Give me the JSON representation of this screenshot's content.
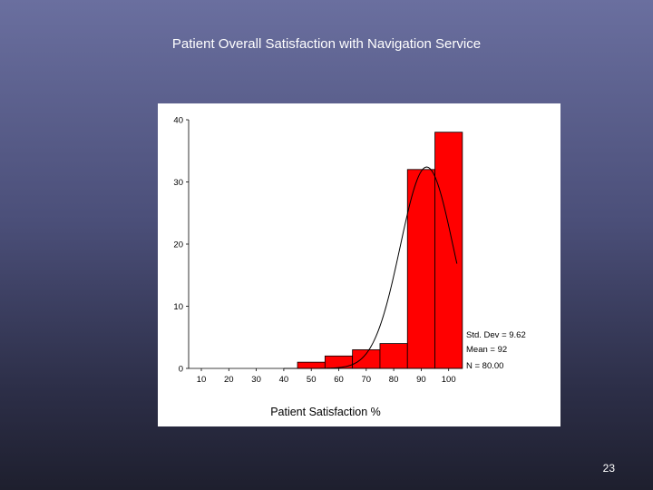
{
  "slide": {
    "title": "Patient Overall Satisfaction with Navigation Service",
    "page_number": "23"
  },
  "colors": {
    "bar_fill": "#ff0000",
    "bar_stroke": "#000000",
    "curve": "#000000"
  },
  "chart_data": {
    "type": "bar",
    "title": "",
    "xlabel": "Patient Satisfaction %",
    "ylabel": "",
    "categories": [
      "10",
      "20",
      "30",
      "40",
      "50",
      "60",
      "70",
      "80",
      "90",
      "100"
    ],
    "values": [
      0,
      0,
      0,
      0,
      1,
      2,
      3,
      4,
      32,
      38
    ],
    "ylim": [
      0,
      40
    ],
    "yticks": [
      "0",
      "10",
      "20",
      "30",
      "40"
    ],
    "normal_curve": {
      "mean": 92,
      "std": 9.62,
      "n": 80
    },
    "stats": {
      "std_dev": "Std. Dev = 9.62",
      "mean": "Mean = 92",
      "n": "N = 80.00"
    }
  }
}
